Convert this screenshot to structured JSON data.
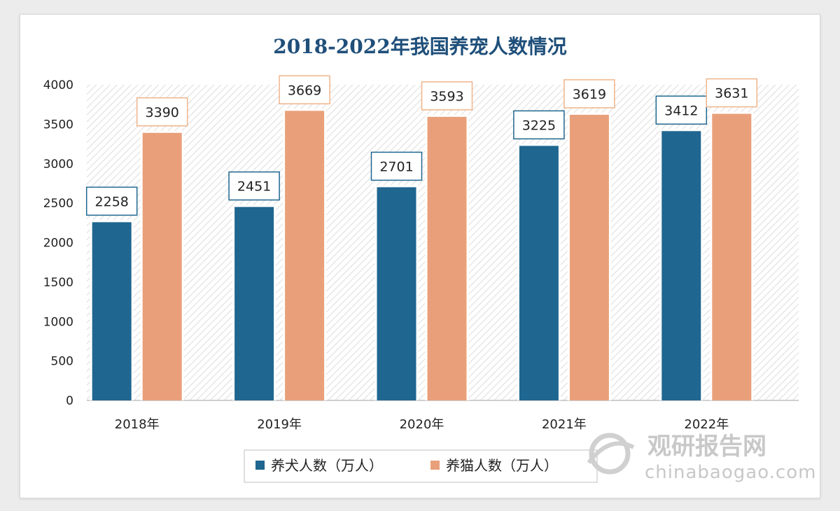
{
  "chart_data": {
    "type": "bar",
    "title": "2018-2022年我国养宠人数情况",
    "categories": [
      "2018年",
      "2019年",
      "2020年",
      "2021年",
      "2022年"
    ],
    "series": [
      {
        "name": "养犬人数（万人）",
        "values": [
          2258,
          2451,
          2701,
          3225,
          3412
        ],
        "color": "#1f6690"
      },
      {
        "name": "养猫人数（万人）",
        "values": [
          3390,
          3669,
          3593,
          3619,
          3631
        ],
        "color": "#e9a07a"
      }
    ],
    "ylim": [
      0,
      4000
    ],
    "yticks": [
      0,
      500,
      1000,
      1500,
      2000,
      2500,
      3000,
      3500,
      4000
    ],
    "grid": false,
    "legend_position": "bottom-center",
    "title_color": "#1f4f7a",
    "label_border_colors": [
      "#1f6690",
      "#f0b48a"
    ]
  },
  "watermark": {
    "text_cn": "观研报告网",
    "text_en": "chinabaogao.com"
  }
}
